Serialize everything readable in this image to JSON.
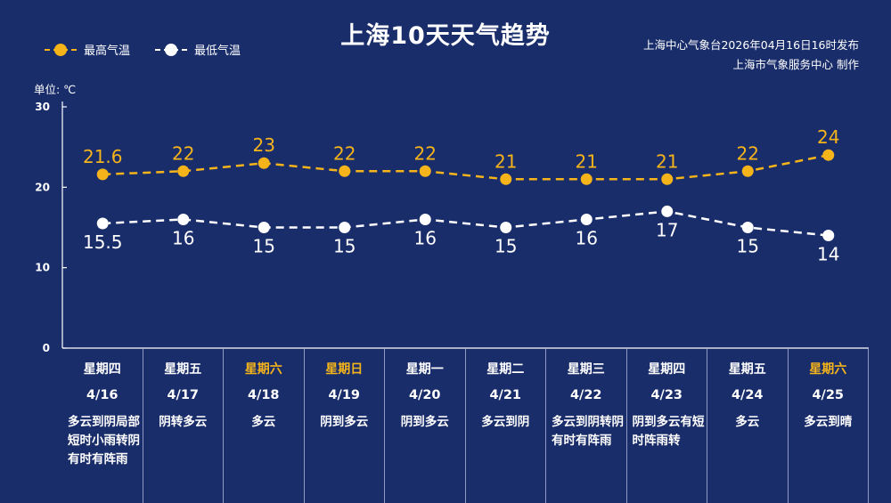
{
  "chart_data": {
    "type": "line",
    "title": "上海10天天气趋势",
    "unit_label": "单位: ℃",
    "source_lines": [
      "上海中心气象台2026年04月16日16时发布",
      "上海市气象服务中心 制作"
    ],
    "ylim": [
      0,
      30
    ],
    "yticks": [
      "0",
      "10",
      "20",
      "30"
    ],
    "legend": "top-left",
    "colors": {
      "high": "#f5b41a",
      "low": "#ffffff"
    },
    "series": [
      {
        "name": "最高气温",
        "values": [
          21.6,
          22,
          23,
          22,
          22,
          21,
          21,
          21,
          22,
          24
        ],
        "labels": [
          "21.6",
          "22",
          "23",
          "22",
          "22",
          "21",
          "21",
          "21",
          "22",
          "24"
        ]
      },
      {
        "name": "最低气温",
        "values": [
          15.5,
          16,
          15,
          15,
          16,
          15,
          16,
          17,
          15,
          14
        ],
        "labels": [
          "15.5",
          "16",
          "15",
          "15",
          "16",
          "15",
          "16",
          "17",
          "15",
          "14"
        ]
      }
    ],
    "days": [
      {
        "weekday": "星期四",
        "date": "4/16",
        "weather": "多云到阴局部短时小雨转阴有时有阵雨",
        "weekend": false
      },
      {
        "weekday": "星期五",
        "date": "4/17",
        "weather": "阴转多云",
        "weekend": false
      },
      {
        "weekday": "星期六",
        "date": "4/18",
        "weather": "多云",
        "weekend": true
      },
      {
        "weekday": "星期日",
        "date": "4/19",
        "weather": "阴到多云",
        "weekend": true
      },
      {
        "weekday": "星期一",
        "date": "4/20",
        "weather": "阴到多云",
        "weekend": false
      },
      {
        "weekday": "星期二",
        "date": "4/21",
        "weather": "多云到阴",
        "weekend": false
      },
      {
        "weekday": "星期三",
        "date": "4/22",
        "weather": "多云到阴转阴有时有阵雨",
        "weekend": false
      },
      {
        "weekday": "星期四",
        "date": "4/23",
        "weather": "阴到多云有短时阵雨转",
        "weekend": false
      },
      {
        "weekday": "星期五",
        "date": "4/24",
        "weather": "多云",
        "weekend": false
      },
      {
        "weekday": "星期六",
        "date": "4/25",
        "weather": "多云到晴",
        "weekend": true
      }
    ]
  }
}
